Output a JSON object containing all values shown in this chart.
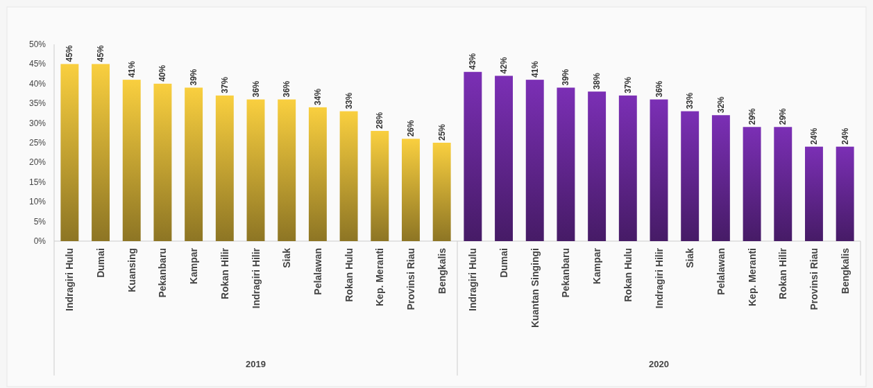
{
  "chart_data": {
    "type": "bar",
    "annotations": [
      "2019",
      "2020"
    ],
    "categories": [
      "Indragiri Hulu",
      "Dumai",
      "Kuansing",
      "Pekanbaru",
      "Kampar",
      "Rokan Hilir",
      "Indragiri Hilir",
      "Siak",
      "Pelalawan",
      "Rokan Hulu",
      "Kep. Meranti",
      "Provinsi Riau",
      "Bengkalis",
      "Indragiri Hulu",
      "Dumai",
      "Kuantan Singingi",
      "Pekanbaru",
      "Kampar",
      "Rokan Hulu",
      "Indragiri Hilir",
      "Siak",
      "Pelalawan",
      "Kep. Meranti",
      "Rokan Hilir",
      "Provinsi Riau",
      "Bengkalis"
    ],
    "series": [
      {
        "color": "#f9cf3f",
        "values": [
          45,
          45,
          41,
          40,
          39,
          37,
          36,
          36,
          34,
          33,
          28,
          26,
          25,
          null,
          null,
          null,
          null,
          null,
          null,
          null,
          null,
          null,
          null,
          null,
          null,
          null
        ],
        "value_labels": [
          "45%",
          "45%",
          "41%",
          "40%",
          "39%",
          "37%",
          "36%",
          "36%",
          "34%",
          "33%",
          "28%",
          "26%",
          "25%",
          null,
          null,
          null,
          null,
          null,
          null,
          null,
          null,
          null,
          null,
          null,
          null,
          null
        ]
      },
      {
        "color": "#7b2fb5",
        "values": [
          null,
          null,
          null,
          null,
          null,
          null,
          null,
          null,
          null,
          null,
          null,
          null,
          null,
          43,
          42,
          41,
          39,
          38,
          37,
          36,
          33,
          32,
          29,
          29,
          24,
          24
        ],
        "value_labels": [
          null,
          null,
          null,
          null,
          null,
          null,
          null,
          null,
          null,
          null,
          null,
          null,
          null,
          "43%",
          "42%",
          "41%",
          "39%",
          "38%",
          "37%",
          "36%",
          "33%",
          "32%",
          "29%",
          "29%",
          "24%",
          "24%"
        ]
      }
    ],
    "ylim": [
      0,
      50
    ],
    "yticks": [
      {
        "value": 0,
        "label": "0%"
      },
      {
        "value": 5,
        "label": "5%"
      },
      {
        "value": 10,
        "label": "10%"
      },
      {
        "value": 15,
        "label": "15%"
      },
      {
        "value": 20,
        "label": "20%"
      },
      {
        "value": 25,
        "label": "25%"
      },
      {
        "value": 30,
        "label": "30%"
      },
      {
        "value": 35,
        "label": "35%"
      },
      {
        "value": 40,
        "label": "40%"
      },
      {
        "value": 45,
        "label": "45%"
      },
      {
        "value": 50,
        "label": "50%"
      }
    ]
  }
}
